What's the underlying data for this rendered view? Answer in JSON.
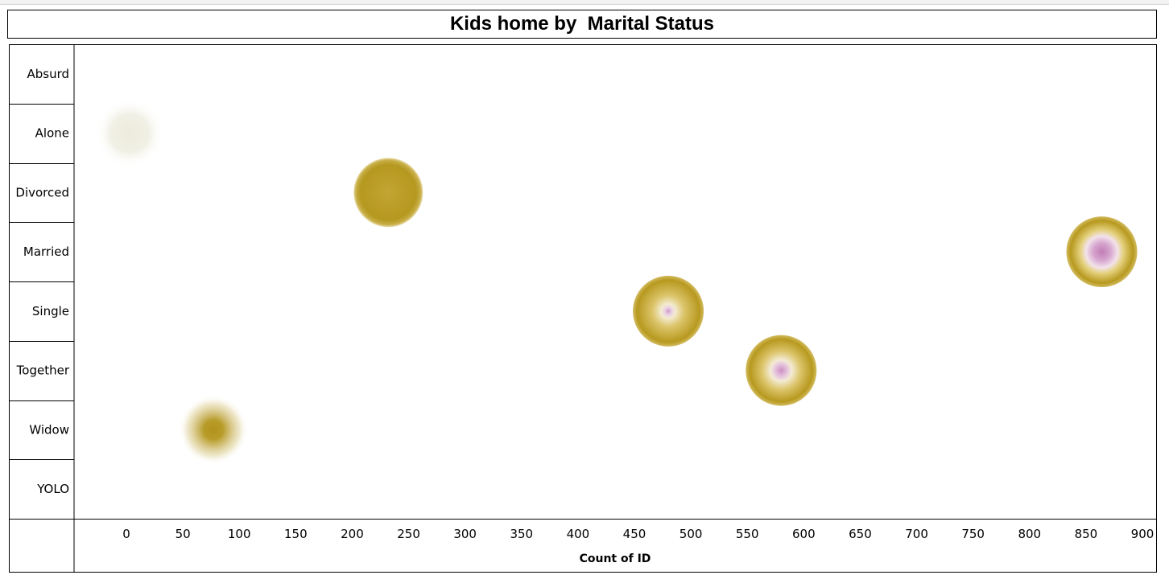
{
  "chart_data": {
    "type": "scatter",
    "title": "Kids home by  Marital Status",
    "xlabel": "Count of ID",
    "ylabel": "",
    "categories": [
      "Absurd",
      "Alone",
      "Divorced",
      "Married",
      "Single",
      "Together",
      "Widow",
      "YOLO"
    ],
    "x_ticks": [
      "0",
      "50",
      "100",
      "150",
      "200",
      "250",
      "300",
      "350",
      "400",
      "450",
      "500",
      "550",
      "600",
      "650",
      "700",
      "750",
      "800",
      "850",
      "900"
    ],
    "xlim": [
      -30,
      905
    ],
    "grid": false,
    "points": [
      {
        "category": "Alone",
        "x": 3,
        "style": "faint"
      },
      {
        "category": "Divorced",
        "x": 232,
        "style": "gold"
      },
      {
        "category": "Married",
        "x": 864,
        "style": "pink-large"
      },
      {
        "category": "Single",
        "x": 480,
        "style": "pink-small"
      },
      {
        "category": "Together",
        "x": 580,
        "style": "pink-medium"
      },
      {
        "category": "Widow",
        "x": 77,
        "style": "fuzzy"
      }
    ],
    "colors": {
      "gold": "#b89a22",
      "gold_light": "#d8c25a",
      "pink": "#c98bbf",
      "faint": "#efeee1"
    }
  }
}
